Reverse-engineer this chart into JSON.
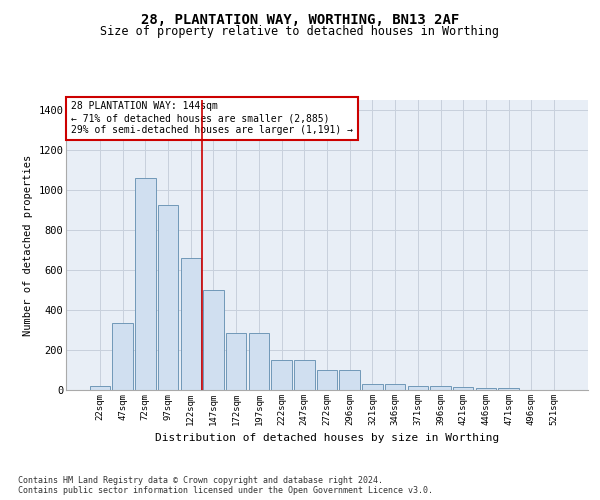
{
  "title1": "28, PLANTATION WAY, WORTHING, BN13 2AF",
  "title2": "Size of property relative to detached houses in Worthing",
  "xlabel": "Distribution of detached houses by size in Worthing",
  "ylabel": "Number of detached properties",
  "categories": [
    "22sqm",
    "47sqm",
    "72sqm",
    "97sqm",
    "122sqm",
    "147sqm",
    "172sqm",
    "197sqm",
    "222sqm",
    "247sqm",
    "272sqm",
    "296sqm",
    "321sqm",
    "346sqm",
    "371sqm",
    "396sqm",
    "421sqm",
    "446sqm",
    "471sqm",
    "496sqm",
    "521sqm"
  ],
  "bar_values": [
    20,
    335,
    1060,
    925,
    660,
    500,
    285,
    285,
    150,
    150,
    100,
    100,
    30,
    30,
    22,
    18,
    15,
    10,
    8,
    0,
    0
  ],
  "bar_color": "#d0dff0",
  "bar_edge_color": "#7098b8",
  "vline_x_idx": 4.5,
  "vline_color": "#cc0000",
  "annotation_text": "28 PLANTATION WAY: 144sqm\n← 71% of detached houses are smaller (2,885)\n29% of semi-detached houses are larger (1,191) →",
  "annotation_box_color": "#cc0000",
  "ylim": [
    0,
    1450
  ],
  "yticks": [
    0,
    200,
    400,
    600,
    800,
    1000,
    1200,
    1400
  ],
  "grid_color": "#c8d0dc",
  "bg_color": "#e8eef6",
  "footnote": "Contains HM Land Registry data © Crown copyright and database right 2024.\nContains public sector information licensed under the Open Government Licence v3.0."
}
